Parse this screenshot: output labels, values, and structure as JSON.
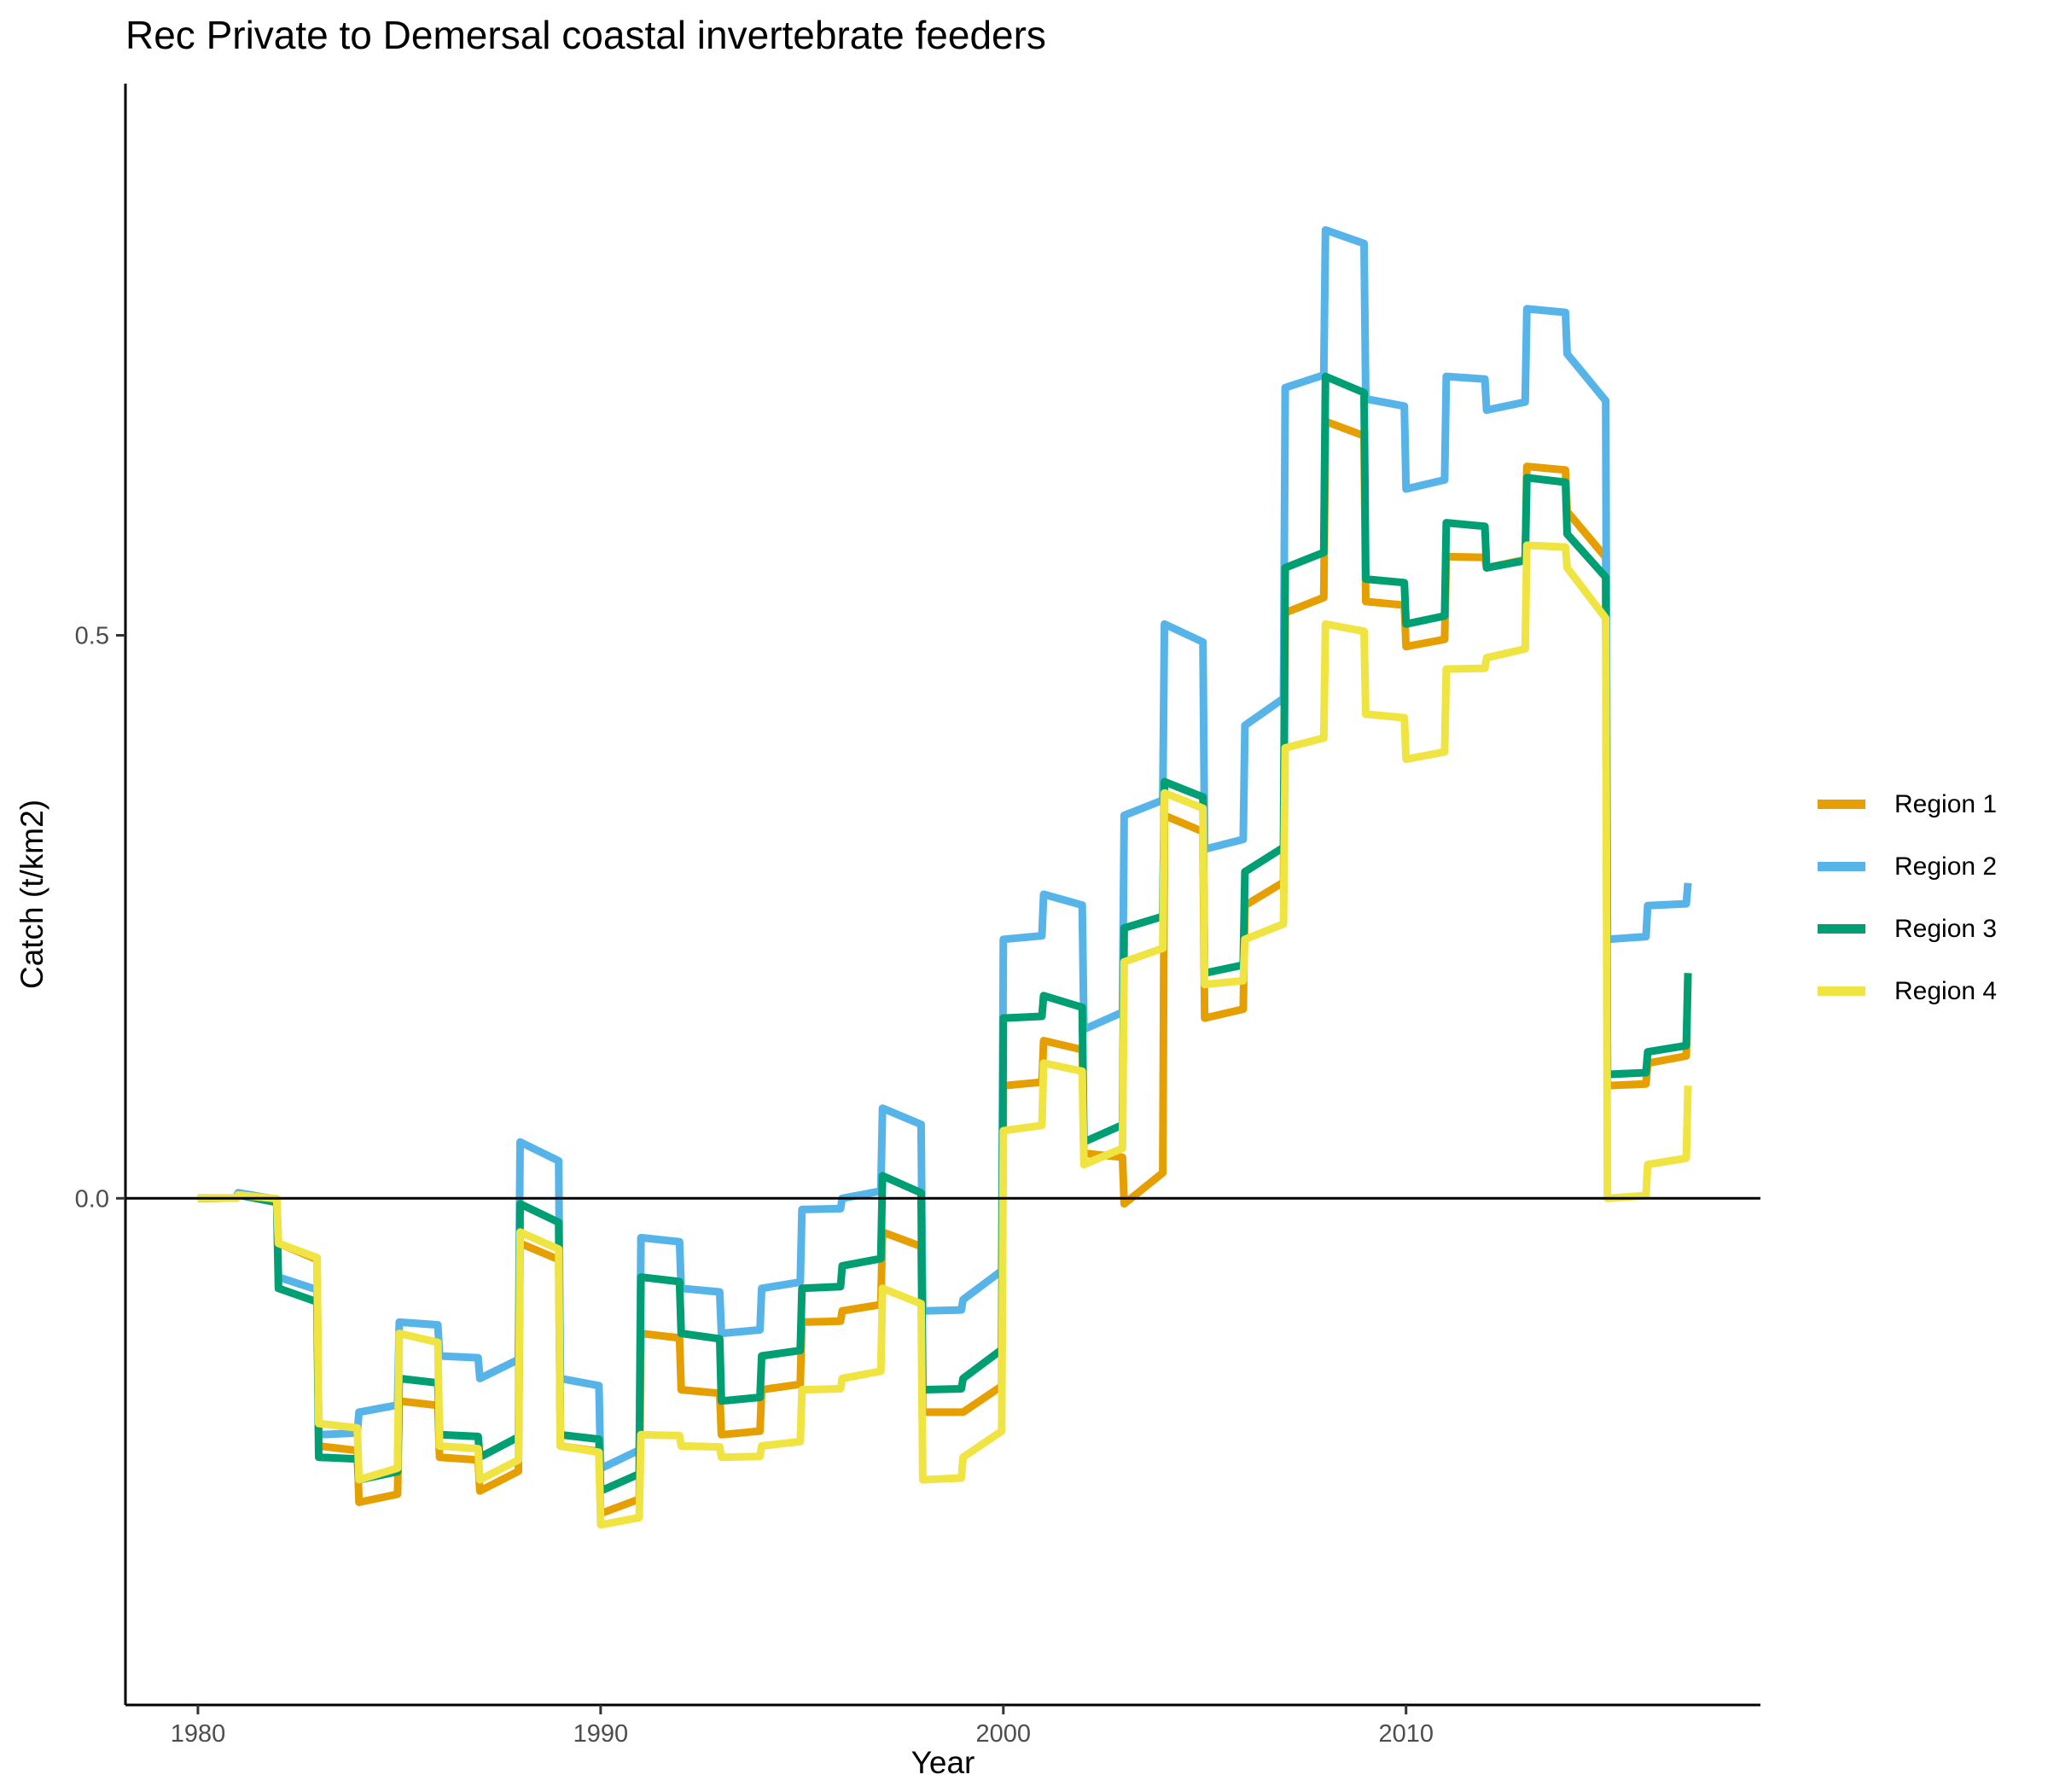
{
  "chart_data": {
    "type": "line",
    "title": "Rec Private to Demersal coastal invertebrate feeders",
    "xlabel": "Year",
    "ylabel": "Catch (t/km2)",
    "xlim": [
      1978.2,
      2018.8
    ],
    "ylim": [
      -0.45,
      0.99
    ],
    "x_ticks": [
      1980,
      1990,
      2000,
      2010
    ],
    "x_tick_labels": [
      "1980",
      "1990",
      "2000",
      "2010"
    ],
    "y_ticks": [
      0.0,
      0.5
    ],
    "y_tick_labels": [
      "0.0",
      "0.5"
    ],
    "reference_line_y": 0,
    "grid": false,
    "legend_position": "right",
    "x": [
      1980,
      1981,
      1982,
      1983,
      1984,
      1985,
      1986,
      1987,
      1988,
      1989,
      1990,
      1991,
      1992,
      1993,
      1994,
      1995,
      1996,
      1997,
      1998,
      1999,
      2000,
      2001,
      2002,
      2003,
      2004,
      2005,
      2006,
      2007,
      2008,
      2009,
      2010,
      2011,
      2012,
      2013,
      2014,
      2015,
      2016,
      2017
    ],
    "series": [
      {
        "name": "Region 1",
        "color": "#E69F00",
        "values": [
          0.0,
          0.003,
          -0.04,
          -0.22,
          -0.27,
          -0.18,
          -0.23,
          -0.26,
          -0.04,
          -0.22,
          -0.28,
          -0.12,
          -0.17,
          -0.21,
          -0.17,
          -0.11,
          -0.1,
          -0.03,
          -0.19,
          -0.19,
          0.1,
          0.14,
          0.04,
          -0.005,
          0.34,
          0.16,
          0.26,
          0.52,
          0.69,
          0.53,
          0.49,
          0.57,
          0.56,
          0.65,
          0.61,
          0.1,
          0.12,
          0.2
        ]
      },
      {
        "name": "Region 2",
        "color": "#56B4E9",
        "values": [
          0.0,
          0.005,
          -0.07,
          -0.21,
          -0.19,
          -0.11,
          -0.14,
          -0.16,
          0.05,
          -0.16,
          -0.24,
          -0.035,
          -0.08,
          -0.12,
          -0.08,
          -0.01,
          0.0,
          0.08,
          -0.1,
          -0.09,
          0.23,
          0.27,
          0.15,
          0.34,
          0.51,
          0.31,
          0.42,
          0.72,
          0.86,
          0.71,
          0.63,
          0.73,
          0.7,
          0.79,
          0.75,
          0.23,
          0.26,
          0.28
        ]
      },
      {
        "name": "Region 3",
        "color": "#009E73",
        "values": [
          0.0,
          0.003,
          -0.08,
          -0.23,
          -0.25,
          -0.16,
          -0.21,
          -0.23,
          -0.005,
          -0.21,
          -0.26,
          -0.07,
          -0.12,
          -0.18,
          -0.14,
          -0.08,
          -0.06,
          0.02,
          -0.17,
          -0.16,
          0.16,
          0.18,
          0.05,
          0.24,
          0.37,
          0.2,
          0.29,
          0.56,
          0.73,
          0.55,
          0.51,
          0.6,
          0.56,
          0.64,
          0.59,
          0.11,
          0.13,
          0.2
        ]
      },
      {
        "name": "Region 4",
        "color": "#F0E442",
        "values": [
          0.0,
          0.003,
          -0.04,
          -0.2,
          -0.25,
          -0.12,
          -0.22,
          -0.25,
          -0.03,
          -0.22,
          -0.29,
          -0.21,
          -0.22,
          -0.23,
          -0.22,
          -0.17,
          -0.16,
          -0.08,
          -0.25,
          -0.23,
          0.06,
          0.12,
          0.03,
          0.21,
          0.36,
          0.19,
          0.23,
          0.4,
          0.51,
          0.43,
          0.39,
          0.47,
          0.48,
          0.58,
          0.56,
          0.0,
          0.03,
          0.1
        ]
      }
    ]
  }
}
